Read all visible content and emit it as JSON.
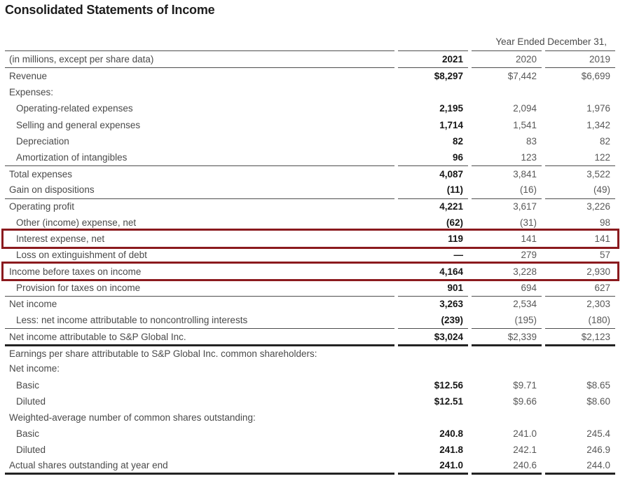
{
  "page": {
    "title": "Consolidated Statements of Income"
  },
  "table": {
    "span_header": "Year Ended December 31,",
    "columns": {
      "label": "(in millions, except per share data)",
      "years": [
        "2021",
        "2020",
        "2019"
      ]
    },
    "highlight_color": "#8b1a1e",
    "rows": [
      {
        "label": "Revenue",
        "values": [
          "$8,297",
          "$7,442",
          "$6,699"
        ],
        "indent": false,
        "rule": "",
        "highlight": false
      },
      {
        "label": "Expenses:",
        "values": [
          "",
          "",
          ""
        ],
        "indent": false,
        "rule": "",
        "highlight": false
      },
      {
        "label": "Operating-related expenses",
        "values": [
          "2,195",
          "2,094",
          "1,976"
        ],
        "indent": true,
        "rule": "",
        "highlight": false
      },
      {
        "label": "Selling and general expenses",
        "values": [
          "1,714",
          "1,541",
          "1,342"
        ],
        "indent": true,
        "rule": "",
        "highlight": false
      },
      {
        "label": "Depreciation",
        "values": [
          "82",
          "83",
          "82"
        ],
        "indent": true,
        "rule": "",
        "highlight": false
      },
      {
        "label": "Amortization of intangibles",
        "values": [
          "96",
          "123",
          "122"
        ],
        "indent": true,
        "rule": "",
        "highlight": false
      },
      {
        "label": "Total expenses",
        "values": [
          "4,087",
          "3,841",
          "3,522"
        ],
        "indent": false,
        "rule": "thin",
        "highlight": false
      },
      {
        "label": "Gain on dispositions",
        "values": [
          "(11)",
          "(16)",
          "(49)"
        ],
        "indent": false,
        "rule": "",
        "highlight": false
      },
      {
        "label": "Operating profit",
        "values": [
          "4,221",
          "3,617",
          "3,226"
        ],
        "indent": false,
        "rule": "thin",
        "highlight": false
      },
      {
        "label": "Other (income) expense, net",
        "values": [
          "(62)",
          "(31)",
          "98"
        ],
        "indent": true,
        "rule": "",
        "highlight": false
      },
      {
        "label": "Interest expense, net",
        "values": [
          "119",
          "141",
          "141"
        ],
        "indent": true,
        "rule": "",
        "highlight": true
      },
      {
        "label": "Loss on extinguishment of debt",
        "values": [
          "—",
          "279",
          "57"
        ],
        "indent": true,
        "rule": "",
        "highlight": false
      },
      {
        "label": "Income before taxes on income",
        "values": [
          "4,164",
          "3,228",
          "2,930"
        ],
        "indent": false,
        "rule": "thin",
        "highlight": true
      },
      {
        "label": "Provision for taxes on income",
        "values": [
          "901",
          "694",
          "627"
        ],
        "indent": true,
        "rule": "",
        "highlight": false
      },
      {
        "label": "Net income",
        "values": [
          "3,263",
          "2,534",
          "2,303"
        ],
        "indent": false,
        "rule": "thin",
        "highlight": false
      },
      {
        "label": "Less: net income attributable to noncontrolling interests",
        "values": [
          "(239)",
          "(195)",
          "(180)"
        ],
        "indent": true,
        "rule": "",
        "highlight": false
      },
      {
        "label": "Net income attributable to S&P Global Inc.",
        "values": [
          "$3,024",
          "$2,339",
          "$2,123"
        ],
        "indent": false,
        "rule": "thin",
        "highlight": false
      },
      {
        "label": "Earnings per share attributable to S&P Global Inc. common shareholders:",
        "values": [
          "",
          "",
          ""
        ],
        "indent": false,
        "rule": "thick",
        "highlight": false
      },
      {
        "label": "Net income:",
        "values": [
          "",
          "",
          ""
        ],
        "indent": false,
        "rule": "",
        "highlight": false
      },
      {
        "label": "Basic",
        "values": [
          "$12.56",
          "$9.71",
          "$8.65"
        ],
        "indent": true,
        "rule": "",
        "highlight": false
      },
      {
        "label": "Diluted",
        "values": [
          "$12.51",
          "$9.66",
          "$8.60"
        ],
        "indent": true,
        "rule": "",
        "highlight": false
      },
      {
        "label": "Weighted-average number of common shares outstanding:",
        "values": [
          "",
          "",
          ""
        ],
        "indent": false,
        "rule": "",
        "highlight": false
      },
      {
        "label": "Basic",
        "values": [
          "240.8",
          "241.0",
          "245.4"
        ],
        "indent": true,
        "rule": "",
        "highlight": false
      },
      {
        "label": "Diluted",
        "values": [
          "241.8",
          "242.1",
          "246.9"
        ],
        "indent": true,
        "rule": "",
        "highlight": false
      },
      {
        "label": "Actual shares outstanding at year end",
        "values": [
          "241.0",
          "240.6",
          "244.0"
        ],
        "indent": false,
        "rule": "",
        "bottom_rule": "thick",
        "highlight": false
      }
    ]
  }
}
